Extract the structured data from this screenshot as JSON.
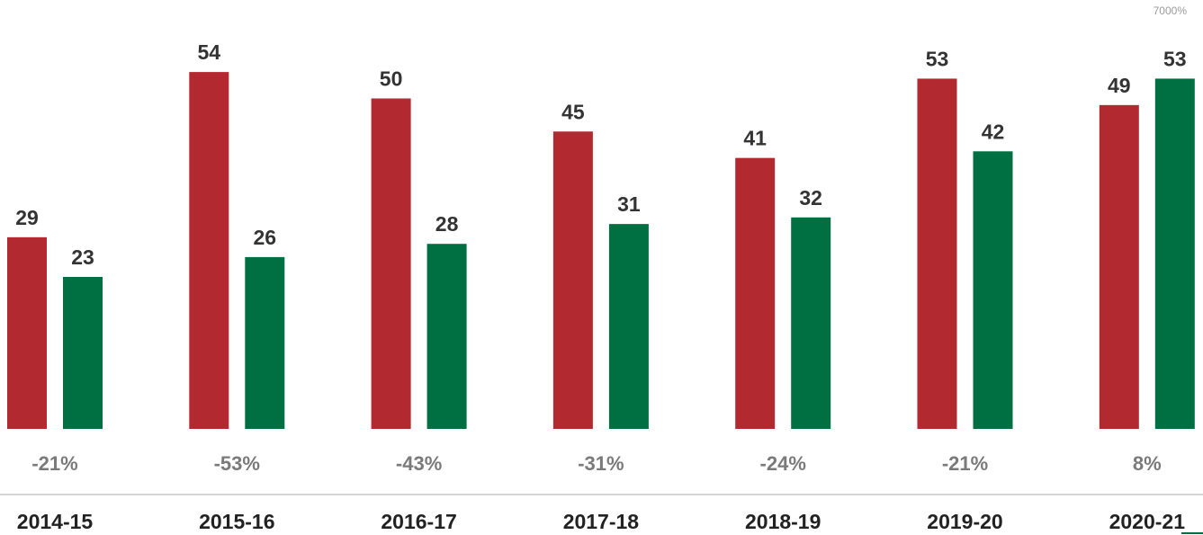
{
  "chart_data": {
    "type": "bar",
    "categories": [
      "2014-15",
      "2015-16",
      "2016-17",
      "2017-18",
      "2018-19",
      "2019-20",
      "2020-21"
    ],
    "series": [
      {
        "values": [
          29,
          54,
          50,
          45,
          41,
          53,
          49
        ],
        "color": "#b22a30"
      },
      {
        "values": [
          23,
          26,
          28,
          31,
          32,
          42,
          53
        ],
        "color": "#006f41"
      }
    ],
    "changes": [
      "-21%",
      "-53%",
      "-43%",
      "-31%",
      "-24%",
      "-21%",
      "8%"
    ],
    "axis_label": "7000%",
    "ylim": [
      0,
      70
    ],
    "grid": false,
    "colors": {
      "baseline": "#c8c8c8",
      "change_text": "#7a7a7a",
      "value_text": "#333333"
    }
  }
}
